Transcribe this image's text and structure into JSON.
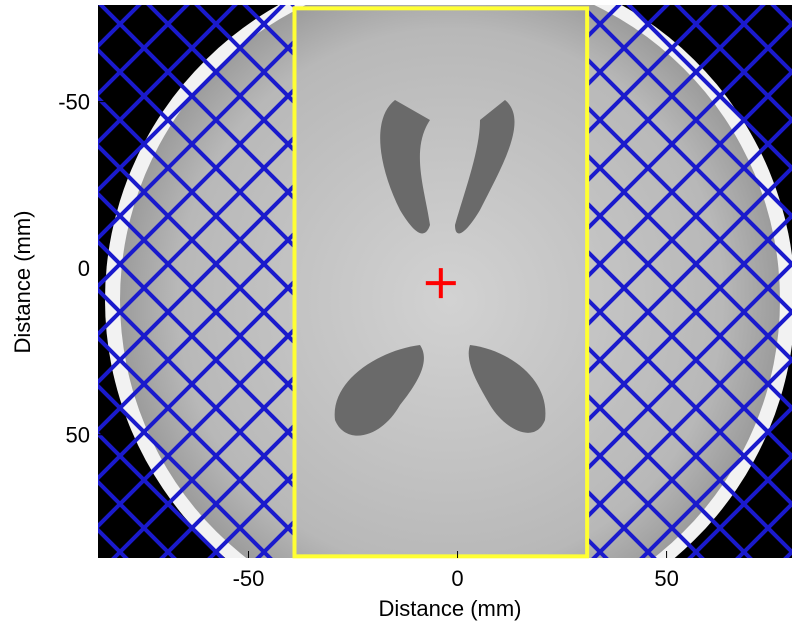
{
  "chart_data": {
    "type": "image",
    "xlabel": "Distance (mm)",
    "ylabel": "Distance (mm)",
    "xlim": [
      -86,
      80
    ],
    "ylim": [
      -79,
      87
    ],
    "xticks": [
      -50,
      0,
      50
    ],
    "yticks": [
      -50,
      0,
      50
    ],
    "roi": {
      "x": [
        -39,
        31
      ],
      "y": [
        -78,
        86.5
      ],
      "color": "#ffff33"
    },
    "marker": {
      "x": -4,
      "y": 4.5,
      "color": "#ff0000"
    },
    "hatch_color": "#1a1acc"
  }
}
